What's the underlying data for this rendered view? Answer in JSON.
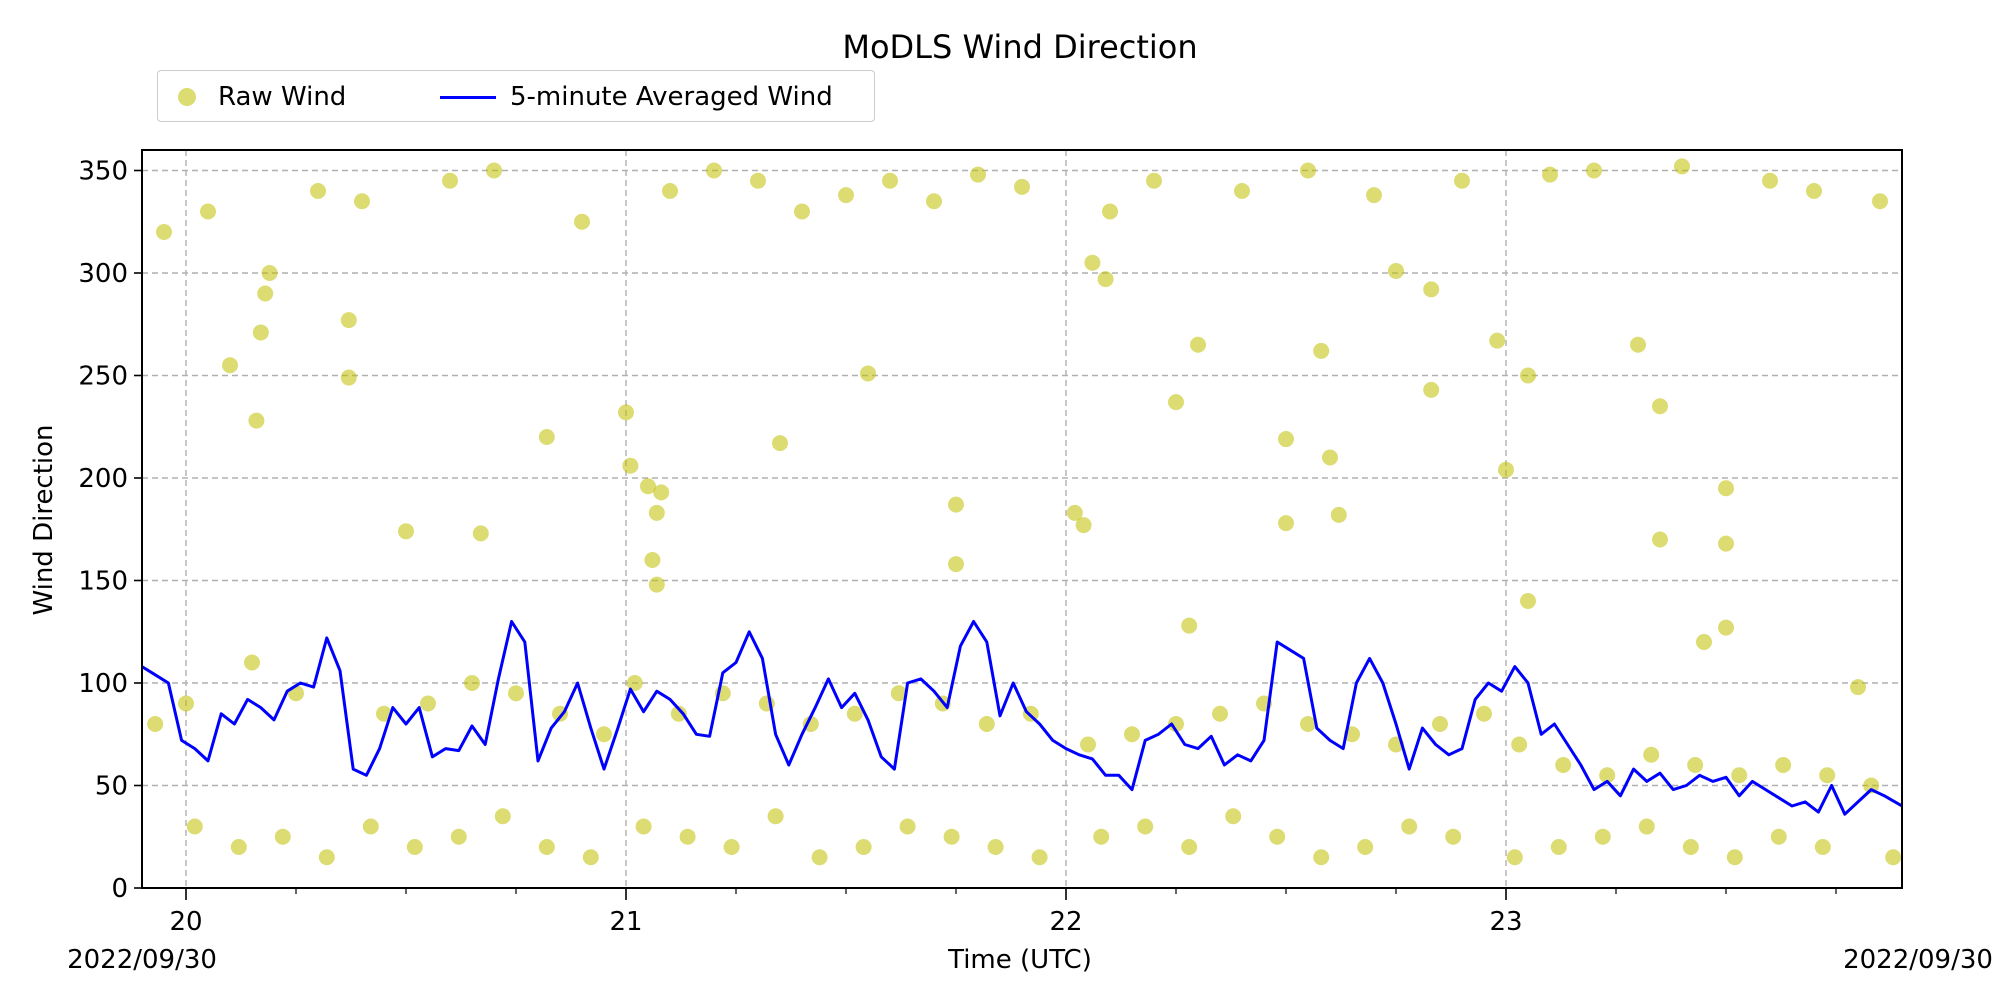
{
  "chart_data": {
    "type": "scatter",
    "title": "MoDLS Wind Direction",
    "xlabel": "Time (UTC)",
    "ylabel": "Wind Direction",
    "xlim": [
      19.9,
      23.9
    ],
    "ylim": [
      0,
      360
    ],
    "xticks": [
      20,
      21,
      22,
      23
    ],
    "xtick_labels": [
      "20",
      "21",
      "22",
      "23"
    ],
    "x_minor_step": 0.25,
    "yticks": [
      0,
      50,
      100,
      150,
      200,
      250,
      300,
      350
    ],
    "date_left": "2022/09/30",
    "date_right": "2022/09/30",
    "grid": true,
    "legend": {
      "placement": "top-left outside"
    },
    "series": [
      {
        "name": "Raw Wind",
        "kind": "scatter",
        "color": "#bfbf00",
        "x": [
          20.1,
          20.16,
          20.17,
          20.18,
          20.19,
          20.37,
          20.37,
          20.5,
          20.67,
          20.82,
          21.0,
          21.01,
          21.05,
          21.06,
          21.07,
          21.07,
          21.08,
          21.35,
          21.55,
          21.75,
          21.75,
          22.02,
          22.04,
          22.06,
          22.09,
          22.25,
          22.28,
          22.3,
          22.5,
          22.5,
          22.58,
          22.6,
          22.62,
          22.75,
          22.83,
          22.83,
          22.98,
          23.0,
          23.05,
          23.05,
          23.3,
          23.35,
          23.35,
          23.45,
          23.5,
          23.5,
          23.5,
          23.8,
          19.95,
          20.05,
          20.3,
          20.4,
          20.6,
          20.7,
          20.9,
          21.1,
          21.2,
          21.3,
          21.4,
          21.5,
          21.6,
          21.7,
          21.8,
          21.9,
          22.1,
          22.2,
          22.4,
          22.55,
          22.7,
          22.9,
          23.1,
          23.2,
          23.4,
          23.6,
          23.7,
          23.85,
          19.93,
          20.0,
          20.15,
          20.25,
          20.45,
          20.55,
          20.65,
          20.75,
          20.85,
          20.95,
          21.02,
          21.12,
          21.22,
          21.32,
          21.42,
          21.52,
          21.62,
          21.72,
          21.82,
          21.92,
          22.05,
          22.15,
          22.25,
          22.35,
          22.45,
          22.55,
          22.65,
          22.75,
          22.85,
          22.95,
          23.03,
          23.13,
          23.23,
          23.33,
          23.43,
          23.53,
          23.63,
          23.73,
          23.83,
          20.02,
          20.12,
          20.22,
          20.32,
          20.42,
          20.52,
          20.62,
          20.72,
          20.82,
          20.92,
          21.04,
          21.14,
          21.24,
          21.34,
          21.44,
          21.54,
          21.64,
          21.74,
          21.84,
          21.94,
          22.08,
          22.18,
          22.28,
          22.38,
          22.48,
          22.58,
          22.68,
          22.78,
          22.88,
          23.02,
          23.12,
          23.22,
          23.32,
          23.42,
          23.52,
          23.62,
          23.72,
          23.88
        ],
        "y": [
          255,
          228,
          271,
          290,
          300,
          277,
          249,
          174,
          173,
          220,
          232,
          206,
          196,
          160,
          183,
          148,
          193,
          217,
          251,
          187,
          158,
          183,
          177,
          305,
          297,
          237,
          128,
          265,
          219,
          178,
          262,
          210,
          182,
          301,
          292,
          243,
          267,
          204,
          250,
          140,
          265,
          235,
          170,
          120,
          195,
          168,
          127,
          98,
          320,
          330,
          340,
          335,
          345,
          350,
          325,
          340,
          350,
          345,
          330,
          338,
          345,
          335,
          348,
          342,
          330,
          345,
          340,
          350,
          338,
          345,
          348,
          350,
          352,
          345,
          340,
          335,
          80,
          90,
          110,
          95,
          85,
          90,
          100,
          95,
          85,
          75,
          100,
          85,
          95,
          90,
          80,
          85,
          95,
          90,
          80,
          85,
          70,
          75,
          80,
          85,
          90,
          80,
          75,
          70,
          80,
          85,
          70,
          60,
          55,
          65,
          60,
          55,
          60,
          55,
          50,
          30,
          20,
          25,
          15,
          30,
          20,
          25,
          35,
          20,
          15,
          30,
          25,
          20,
          35,
          15,
          20,
          30,
          25,
          20,
          15,
          25,
          30,
          20,
          35,
          25,
          15,
          20,
          30,
          25,
          15,
          20,
          25,
          30,
          20,
          15,
          25,
          20,
          15
        ]
      },
      {
        "name": "5-minute Averaged Wind",
        "kind": "line",
        "color": "#0000ff",
        "x": [
          19.9,
          19.93,
          19.96,
          19.99,
          20.02,
          20.05,
          20.08,
          20.11,
          20.14,
          20.17,
          20.2,
          20.23,
          20.26,
          20.29,
          20.32,
          20.35,
          20.38,
          20.41,
          20.44,
          20.47,
          20.5,
          20.53,
          20.56,
          20.59,
          20.62,
          20.65,
          20.68,
          20.71,
          20.74,
          20.77,
          20.8,
          20.83,
          20.86,
          20.89,
          20.92,
          20.95,
          20.98,
          21.01,
          21.04,
          21.07,
          21.1,
          21.13,
          21.16,
          21.19,
          21.22,
          21.25,
          21.28,
          21.31,
          21.34,
          21.37,
          21.4,
          21.43,
          21.46,
          21.49,
          21.52,
          21.55,
          21.58,
          21.61,
          21.64,
          21.67,
          21.7,
          21.73,
          21.76,
          21.79,
          21.82,
          21.85,
          21.88,
          21.91,
          21.94,
          21.97,
          22.0,
          22.03,
          22.06,
          22.09,
          22.12,
          22.15,
          22.18,
          22.21,
          22.24,
          22.27,
          22.3,
          22.33,
          22.36,
          22.39,
          22.42,
          22.45,
          22.48,
          22.51,
          22.54,
          22.57,
          22.6,
          22.63,
          22.66,
          22.69,
          22.72,
          22.75,
          22.78,
          22.81,
          22.84,
          22.87,
          22.9,
          22.93,
          22.96,
          22.99,
          23.02,
          23.05,
          23.08,
          23.11,
          23.14,
          23.17,
          23.2,
          23.23,
          23.26,
          23.29,
          23.32,
          23.35,
          23.38,
          23.41,
          23.44,
          23.47,
          23.5,
          23.53,
          23.56,
          23.59,
          23.62,
          23.65,
          23.68,
          23.71,
          23.74,
          23.77,
          23.8,
          23.83,
          23.86,
          23.9
        ],
        "y": [
          108,
          104,
          100,
          72,
          68,
          62,
          85,
          80,
          92,
          88,
          82,
          96,
          100,
          98,
          122,
          106,
          58,
          55,
          68,
          88,
          80,
          88,
          64,
          68,
          67,
          79,
          70,
          102,
          130,
          120,
          62,
          78,
          86,
          100,
          78,
          58,
          77,
          97,
          86,
          96,
          92,
          85,
          75,
          74,
          105,
          110,
          125,
          112,
          75,
          60,
          75,
          88,
          102,
          88,
          95,
          82,
          64,
          58,
          100,
          102,
          96,
          88,
          118,
          130,
          120,
          84,
          100,
          86,
          80,
          72,
          68,
          65,
          63,
          55,
          55,
          48,
          72,
          75,
          80,
          70,
          68,
          74,
          60,
          65,
          62,
          72,
          120,
          116,
          112,
          78,
          72,
          68,
          100,
          112,
          100,
          80,
          58,
          78,
          70,
          65,
          68,
          92,
          100,
          96,
          108,
          100,
          75,
          80,
          70,
          60,
          48,
          52,
          45,
          58,
          52,
          56,
          48,
          50,
          55,
          52,
          54,
          45,
          52,
          48,
          44,
          40,
          42,
          37,
          50,
          36,
          42,
          48,
          45,
          40
        ]
      }
    ]
  }
}
